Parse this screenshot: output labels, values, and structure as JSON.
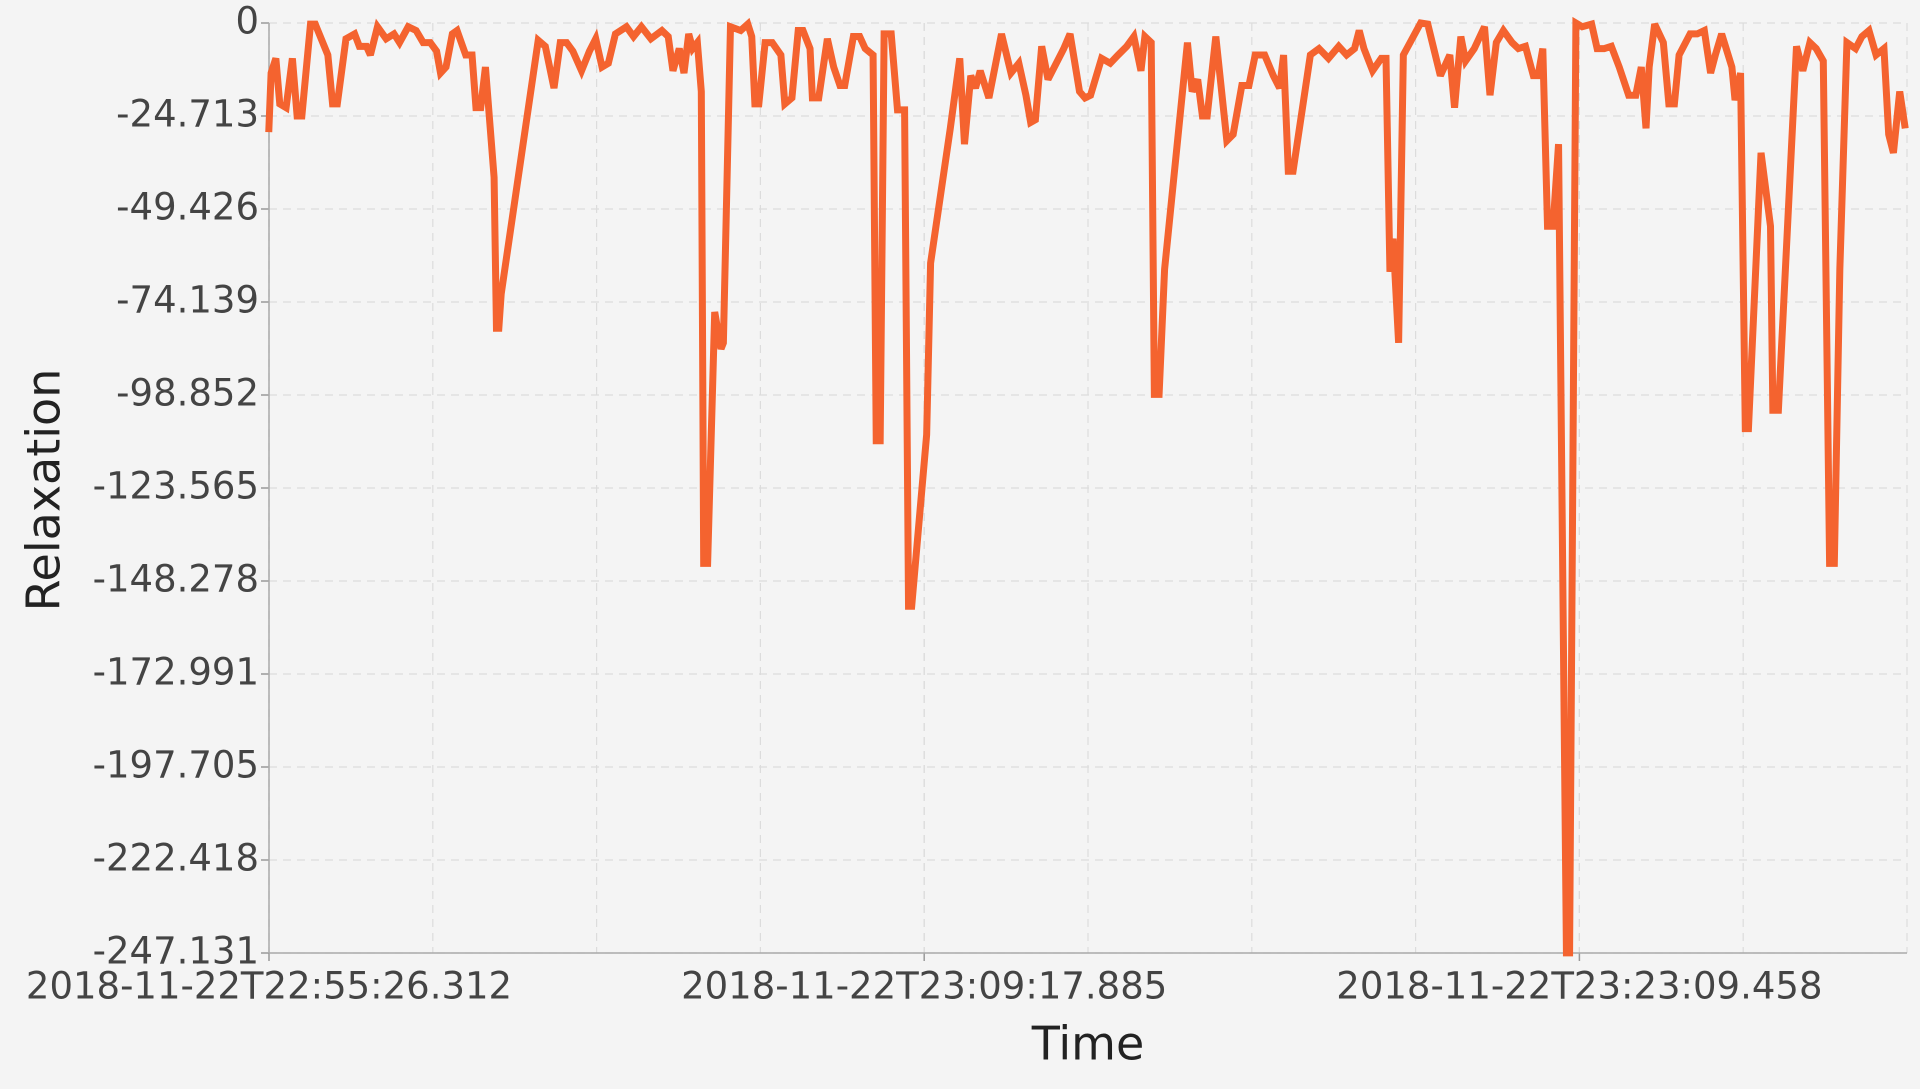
{
  "chart_data": {
    "type": "line",
    "x_label": "Time",
    "y_label": "Relaxation",
    "xlim": [
      "2018-11-22T22:55:26.312",
      "2018-11-22T23:30:05.245"
    ],
    "xticks": [
      "2018-11-22T22:55:26.312",
      "2018-11-22T23:09:17.885",
      "2018-11-22T23:23:09.458"
    ],
    "ylim": [
      -247.131,
      0
    ],
    "yticks": [
      0,
      -24.713,
      -49.426,
      -74.139,
      -98.852,
      -123.565,
      -148.278,
      -172.991,
      -197.705,
      -222.418,
      -247.131
    ],
    "grid": true,
    "x": [
      "2018-11-22T22:55:26",
      "2018-11-22T22:55:29",
      "2018-11-22T22:55:35",
      "2018-11-22T22:55:40",
      "2018-11-22T22:55:48",
      "2018-11-22T22:55:56",
      "2018-11-22T22:56:02",
      "2018-11-22T22:56:08",
      "2018-11-22T22:56:19",
      "2018-11-22T22:56:25",
      "2018-11-22T22:56:41",
      "2018-11-22T22:56:47",
      "2018-11-22T22:56:53",
      "2018-11-22T22:57:04",
      "2018-11-22T22:57:15",
      "2018-11-22T22:57:21",
      "2018-11-22T22:57:30",
      "2018-11-22T22:57:35",
      "2018-11-22T22:57:44",
      "2018-11-22T22:57:55",
      "2018-11-22T22:58:05",
      "2018-11-22T22:58:12",
      "2018-11-22T22:58:23",
      "2018-11-22T22:58:33",
      "2018-11-22T22:58:42",
      "2018-11-22T22:58:51",
      "2018-11-22T22:58:59",
      "2018-11-22T22:59:04",
      "2018-11-22T22:59:11",
      "2018-11-22T22:59:19",
      "2018-11-22T22:59:25",
      "2018-11-22T22:59:36",
      "2018-11-22T22:59:44",
      "2018-11-22T22:59:49",
      "2018-11-22T22:59:55",
      "2018-11-22T23:00:01",
      "2018-11-22T23:00:12",
      "2018-11-22T23:00:15",
      "2018-11-22T23:00:18",
      "2018-11-22T23:00:21",
      "2018-11-22T23:01:08",
      "2018-11-22T23:01:17",
      "2018-11-22T23:01:28",
      "2018-11-22T23:01:36",
      "2018-11-22T23:01:44",
      "2018-11-22T23:01:52",
      "2018-11-22T23:02:03",
      "2018-11-22T23:02:13",
      "2018-11-22T23:02:21",
      "2018-11-22T23:02:29",
      "2018-11-22T23:02:37",
      "2018-11-22T23:02:46",
      "2018-11-22T23:03:00",
      "2018-11-22T23:03:09",
      "2018-11-22T23:03:19",
      "2018-11-22T23:03:31",
      "2018-11-22T23:03:45",
      "2018-11-22T23:03:53",
      "2018-11-22T23:03:59",
      "2018-11-22T23:04:07",
      "2018-11-22T23:04:13",
      "2018-11-22T23:04:19",
      "2018-11-22T23:04:24",
      "2018-11-22T23:04:30",
      "2018-11-22T23:04:35",
      "2018-11-22T23:04:38",
      "2018-11-22T23:04:43",
      "2018-11-22T23:04:52",
      "2018-11-22T23:05:00",
      "2018-11-22T23:05:03",
      "2018-11-22T23:05:12",
      "2018-11-22T23:05:25",
      "2018-11-22T23:05:34",
      "2018-11-22T23:05:39",
      "2018-11-22T23:05:43",
      "2018-11-22T23:05:48",
      "2018-11-22T23:05:56",
      "2018-11-22T23:06:05",
      "2018-11-22T23:06:16",
      "2018-11-22T23:06:21",
      "2018-11-22T23:06:30",
      "2018-11-22T23:06:38",
      "2018-11-22T23:06:44",
      "2018-11-22T23:06:53",
      "2018-11-22T23:06:56",
      "2018-11-22T23:07:04",
      "2018-11-22T23:07:15",
      "2018-11-22T23:07:23",
      "2018-11-22T23:07:31",
      "2018-11-22T23:07:37",
      "2018-11-22T23:07:48",
      "2018-11-22T23:07:56",
      "2018-11-22T23:08:03",
      "2018-11-22T23:08:13",
      "2018-11-22T23:08:17",
      "2018-11-22T23:08:22",
      "2018-11-22T23:08:27",
      "2018-11-22T23:08:36",
      "2018-11-22T23:08:44",
      "2018-11-22T23:08:53",
      "2018-11-22T23:08:58",
      "2018-11-22T23:09:02",
      "2018-11-22T23:09:21",
      "2018-11-22T23:09:26",
      "2018-11-22T23:09:51",
      "2018-11-22T23:10:03",
      "2018-11-22T23:10:09",
      "2018-11-22T23:10:17",
      "2018-11-22T23:10:23",
      "2018-11-22T23:10:29",
      "2018-11-22T23:10:40",
      "2018-11-22T23:10:56",
      "2018-11-22T23:11:08",
      "2018-11-22T23:11:18",
      "2018-11-22T23:11:27",
      "2018-11-22T23:11:33",
      "2018-11-22T23:11:39",
      "2018-11-22T23:11:47",
      "2018-11-22T23:11:55",
      "2018-11-22T23:12:15",
      "2018-11-22T23:12:23",
      "2018-11-22T23:12:35",
      "2018-11-22T23:12:42",
      "2018-11-22T23:12:49",
      "2018-11-22T23:13:03",
      "2018-11-22T23:13:14",
      "2018-11-22T23:13:24",
      "2018-11-22T23:13:35",
      "2018-11-22T23:13:44",
      "2018-11-22T23:13:53",
      "2018-11-22T23:13:58",
      "2018-11-22T23:14:06",
      "2018-11-22T23:14:10",
      "2018-11-22T23:14:16",
      "2018-11-22T23:14:23",
      "2018-11-22T23:14:52",
      "2018-11-22T23:14:58",
      "2018-11-22T23:15:05",
      "2018-11-22T23:15:11",
      "2018-11-22T23:15:17",
      "2018-11-22T23:15:28",
      "2018-11-22T23:15:42",
      "2018-11-22T23:15:50",
      "2018-11-22T23:16:01",
      "2018-11-22T23:16:10",
      "2018-11-22T23:16:18",
      "2018-11-22T23:16:30",
      "2018-11-22T23:16:41",
      "2018-11-22T23:16:49",
      "2018-11-22T23:16:54",
      "2018-11-22T23:17:00",
      "2018-11-22T23:17:06",
      "2018-11-22T23:17:28",
      "2018-11-22T23:17:39",
      "2018-11-22T23:17:51",
      "2018-11-22T23:18:04",
      "2018-11-22T23:18:14",
      "2018-11-22T23:18:24",
      "2018-11-22T23:18:30",
      "2018-11-22T23:18:36",
      "2018-11-22T23:18:47",
      "2018-11-22T23:18:58",
      "2018-11-22T23:19:04",
      "2018-11-22T23:19:09",
      "2018-11-22T23:19:13",
      "2018-11-22T23:19:20",
      "2018-11-22T23:19:26",
      "2018-11-22T23:19:48",
      "2018-11-22T23:19:57",
      "2018-11-22T23:20:13",
      "2018-11-22T23:20:25",
      "2018-11-22T23:20:31",
      "2018-11-22T23:20:39",
      "2018-11-22T23:20:45",
      "2018-11-22T23:20:56",
      "2018-11-22T23:21:09",
      "2018-11-22T23:21:16",
      "2018-11-22T23:21:24",
      "2018-11-22T23:21:33",
      "2018-11-22T23:21:44",
      "2018-11-22T23:21:52",
      "2018-11-22T23:22:01",
      "2018-11-22T23:22:11",
      "2018-11-22T23:22:17",
      "2018-11-22T23:22:23",
      "2018-11-22T23:22:29",
      "2018-11-22T23:22:36",
      "2018-11-22T23:22:43",
      "2018-11-22T23:22:53",
      "2018-11-22T23:22:57",
      "2018-11-22T23:23:05",
      "2018-11-22T23:23:13",
      "2018-11-22T23:23:25",
      "2018-11-22T23:23:32",
      "2018-11-22T23:23:41",
      "2018-11-22T23:23:50",
      "2018-11-22T23:24:00",
      "2018-11-22T23:24:12",
      "2018-11-22T23:24:21",
      "2018-11-22T23:24:28",
      "2018-11-22T23:24:34",
      "2018-11-22T23:24:38",
      "2018-11-22T23:24:45",
      "2018-11-22T23:24:56",
      "2018-11-22T23:25:03",
      "2018-11-22T23:25:10",
      "2018-11-22T23:25:16",
      "2018-11-22T23:25:30",
      "2018-11-22T23:25:39",
      "2018-11-22T23:25:48",
      "2018-11-22T23:25:56",
      "2018-11-22T23:26:02",
      "2018-11-22T23:26:10",
      "2018-11-22T23:26:23",
      "2018-11-22T23:26:27",
      "2018-11-22T23:26:34",
      "2018-11-22T23:26:40",
      "2018-11-22T23:26:44",
      "2018-11-22T23:27:00",
      "2018-11-22T23:27:12",
      "2018-11-22T23:27:15",
      "2018-11-22T23:27:22",
      "2018-11-22T23:27:45",
      "2018-11-22T23:27:53",
      "2018-11-22T23:28:02",
      "2018-11-22T23:28:10",
      "2018-11-22T23:28:19",
      "2018-11-22T23:28:27",
      "2018-11-22T23:28:33",
      "2018-11-22T23:28:40",
      "2018-11-22T23:28:49",
      "2018-11-22T23:29:00",
      "2018-11-22T23:29:08",
      "2018-11-22T23:29:17",
      "2018-11-22T23:29:26",
      "2018-11-22T23:29:36",
      "2018-11-22T23:29:42",
      "2018-11-22T23:29:48",
      "2018-11-22T23:29:56",
      "2018-11-22T23:30:03"
    ],
    "series": [
      {
        "name": "Relaxation",
        "color": "#f4632f",
        "values": [
          -29.0,
          -13.3,
          -9.4,
          -21.5,
          -22.5,
          -9.4,
          -24.7,
          -24.7,
          -0.3,
          -0.3,
          -8.5,
          -21.5,
          -21.5,
          -4.2,
          -2.9,
          -6.2,
          -6.2,
          -8.5,
          -1.0,
          -4.2,
          -2.9,
          -5.2,
          -1.0,
          -2.0,
          -5.2,
          -5.2,
          -7.5,
          -13.3,
          -11.7,
          -2.9,
          -2.0,
          -8.5,
          -8.5,
          -22.5,
          -22.5,
          -11.7,
          -41.0,
          -81.1,
          -81.1,
          -72.0,
          -4.6,
          -6.2,
          -17.3,
          -5.2,
          -5.2,
          -7.5,
          -12.7,
          -7.5,
          -4.2,
          -11.7,
          -10.7,
          -2.9,
          -1.0,
          -3.6,
          -1.0,
          -4.2,
          -2.0,
          -3.6,
          -12.7,
          -6.8,
          -13.3,
          -2.9,
          -6.8,
          -5.2,
          -18.2,
          -143.6,
          -143.6,
          -76.8,
          -86.6,
          -85.0,
          -1.0,
          -2.0,
          -0.3,
          -3.6,
          -21.5,
          -21.5,
          -5.2,
          -5.2,
          -8.5,
          -21.5,
          -19.9,
          -2.0,
          -2.0,
          -6.8,
          -19.9,
          -19.9,
          -4.2,
          -11.7,
          -16.6,
          -16.6,
          -3.6,
          -3.6,
          -6.8,
          -8.5,
          -111.0,
          -111.0,
          -2.9,
          -2.9,
          -23.1,
          -23.1,
          -155.0,
          -155.0,
          -109.4,
          -63.8,
          -28.0,
          -9.4,
          -32.2,
          -14.0,
          -17.3,
          -12.7,
          -19.9,
          -2.9,
          -13.3,
          -10.7,
          -19.2,
          -26.4,
          -25.7,
          -6.2,
          -15.0,
          -6.8,
          -2.9,
          -18.2,
          -19.9,
          -19.2,
          -9.4,
          -10.7,
          -8.5,
          -6.2,
          -3.6,
          -12.7,
          -3.6,
          -5.2,
          -98.7,
          -98.7,
          -65.4,
          -5.2,
          -18.2,
          -15.0,
          -24.7,
          -24.7,
          -3.6,
          -31.3,
          -29.6,
          -16.6,
          -16.6,
          -8.5,
          -8.5,
          -14.0,
          -17.3,
          -8.5,
          -39.4,
          -39.4,
          -8.5,
          -6.8,
          -9.4,
          -6.2,
          -8.5,
          -6.8,
          -2.0,
          -6.8,
          -12.7,
          -9.4,
          -9.4,
          -66.1,
          -57.3,
          -85.0,
          -8.5,
          0,
          -0.3,
          -14.0,
          -8.5,
          -22.5,
          -3.6,
          -10.1,
          -6.8,
          -1.0,
          -19.2,
          -5.2,
          -2.0,
          -5.2,
          -6.8,
          -6.2,
          -14.0,
          -14.0,
          -6.8,
          -54.0,
          -54.0,
          -32.2,
          -247.1,
          -247.1,
          0,
          -1.0,
          -0.3,
          -6.8,
          -6.8,
          -6.2,
          -11.7,
          -19.2,
          -19.2,
          -11.7,
          -28.0,
          -11.7,
          -0.3,
          -5.2,
          -21.5,
          -21.5,
          -8.5,
          -2.9,
          -2.9,
          -2.0,
          -13.3,
          -8.5,
          -2.9,
          -11.7,
          -20.5,
          -13.3,
          -107.8,
          -107.8,
          -34.5,
          -54.0,
          -102.9,
          -102.9,
          -6.2,
          -12.7,
          -5.2,
          -6.8,
          -10.1,
          -143.6,
          -143.6,
          -65.4,
          -5.2,
          -6.8,
          -3.6,
          -2.0,
          -8.5,
          -6.8,
          -29.6,
          -34.5,
          -18.2,
          -28.0
        ]
      }
    ]
  }
}
